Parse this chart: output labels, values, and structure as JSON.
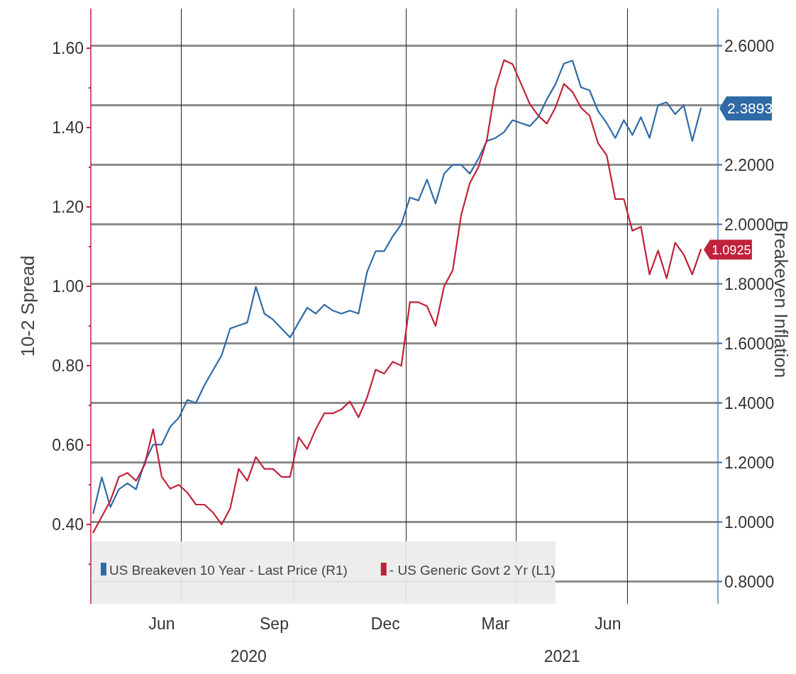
{
  "chart_data": {
    "type": "line",
    "ylabel": "10-2 Spread",
    "y2label": "Breakeven Inflation",
    "x": [
      "2020-04-20",
      "2020-04-27",
      "2020-05-04",
      "2020-05-11",
      "2020-05-18",
      "2020-05-25",
      "2020-06-01",
      "2020-06-08",
      "2020-06-15",
      "2020-06-22",
      "2020-06-29",
      "2020-07-06",
      "2020-07-13",
      "2020-07-20",
      "2020-07-27",
      "2020-08-03",
      "2020-08-10",
      "2020-08-17",
      "2020-08-24",
      "2020-08-31",
      "2020-09-07",
      "2020-09-14",
      "2020-09-21",
      "2020-09-28",
      "2020-10-05",
      "2020-10-12",
      "2020-10-19",
      "2020-10-26",
      "2020-11-02",
      "2020-11-09",
      "2020-11-16",
      "2020-11-23",
      "2020-11-30",
      "2020-12-07",
      "2020-12-14",
      "2020-12-21",
      "2020-12-28",
      "2021-01-04",
      "2021-01-11",
      "2021-01-18",
      "2021-01-25",
      "2021-02-01",
      "2021-02-08",
      "2021-02-15",
      "2021-02-22",
      "2021-03-01",
      "2021-03-08",
      "2021-03-15",
      "2021-03-22",
      "2021-03-29",
      "2021-04-05",
      "2021-04-12",
      "2021-04-19",
      "2021-04-26",
      "2021-05-03",
      "2021-05-10",
      "2021-05-17",
      "2021-05-24",
      "2021-05-31",
      "2021-06-07",
      "2021-06-14",
      "2021-06-21",
      "2021-06-28",
      "2021-07-05",
      "2021-07-12",
      "2021-07-19",
      "2021-07-26",
      "2021-08-02",
      "2021-08-09",
      "2021-08-16",
      "2021-08-23",
      "2021-08-30"
    ],
    "series": [
      {
        "name": "US Breakeven 10 Year - Last Price (R1)",
        "color": "#2f6aa6",
        "axis": "y2",
        "values": [
          1.03,
          1.15,
          1.05,
          1.11,
          1.13,
          1.11,
          1.2,
          1.26,
          1.26,
          1.32,
          1.35,
          1.41,
          1.4,
          1.46,
          1.51,
          1.56,
          1.65,
          1.66,
          1.67,
          1.79,
          1.7,
          1.68,
          1.65,
          1.62,
          1.67,
          1.72,
          1.7,
          1.73,
          1.71,
          1.7,
          1.71,
          1.7,
          1.84,
          1.91,
          1.91,
          1.96,
          2.0,
          2.09,
          2.08,
          2.15,
          2.07,
          2.17,
          2.2,
          2.2,
          2.17,
          2.22,
          2.28,
          2.29,
          2.31,
          2.35,
          2.34,
          2.33,
          2.36,
          2.42,
          2.47,
          2.54,
          2.55,
          2.46,
          2.45,
          2.38,
          2.34,
          2.29,
          2.35,
          2.3,
          2.36,
          2.29,
          2.4,
          2.41,
          2.37,
          2.4,
          2.28,
          2.3893
        ],
        "value_labels": [
          null,
          null,
          null,
          null,
          null,
          null,
          null,
          null,
          null,
          null,
          null,
          null,
          null,
          null,
          null,
          null,
          null,
          null,
          null,
          null,
          null,
          null,
          null,
          null,
          null,
          null,
          null,
          null,
          null,
          null,
          null,
          null,
          null,
          null,
          null,
          null,
          null,
          null,
          null,
          null,
          null,
          null,
          null,
          null,
          null,
          null,
          null,
          null,
          null,
          null,
          null,
          null,
          null,
          null,
          null,
          null,
          null,
          null,
          null,
          null,
          null,
          null,
          null,
          null,
          null,
          null,
          null,
          null,
          null,
          null,
          null,
          "2.3893"
        ]
      },
      {
        "name": "- US Generic Govt 2 Yr (L1)",
        "color": "#c0223b",
        "values": [
          0.38,
          0.42,
          0.46,
          0.52,
          0.53,
          0.51,
          0.55,
          0.64,
          0.52,
          0.49,
          0.5,
          0.48,
          0.45,
          0.45,
          0.43,
          0.4,
          0.44,
          0.54,
          0.51,
          0.57,
          0.54,
          0.54,
          0.52,
          0.52,
          0.62,
          0.59,
          0.64,
          0.68,
          0.68,
          0.69,
          0.71,
          0.67,
          0.72,
          0.79,
          0.78,
          0.81,
          0.8,
          0.96,
          0.96,
          0.95,
          0.9,
          1.0,
          1.04,
          1.18,
          1.26,
          1.3,
          1.37,
          1.5,
          1.57,
          1.56,
          1.51,
          1.46,
          1.43,
          1.41,
          1.45,
          1.51,
          1.49,
          1.45,
          1.43,
          1.36,
          1.33,
          1.22,
          1.22,
          1.14,
          1.15,
          1.03,
          1.09,
          1.02,
          1.11,
          1.08,
          1.03,
          1.0925
        ],
        "value_labels": [
          null,
          null,
          null,
          null,
          null,
          null,
          null,
          null,
          null,
          null,
          null,
          null,
          null,
          null,
          null,
          null,
          null,
          null,
          null,
          null,
          null,
          null,
          null,
          null,
          null,
          null,
          null,
          null,
          null,
          null,
          null,
          null,
          null,
          null,
          null,
          null,
          null,
          null,
          null,
          null,
          null,
          null,
          null,
          null,
          null,
          null,
          null,
          null,
          null,
          null,
          null,
          null,
          null,
          null,
          null,
          null,
          null,
          null,
          null,
          null,
          null,
          null,
          null,
          null,
          null,
          null,
          null,
          null,
          null,
          null,
          null,
          "1.0925"
        ]
      }
    ],
    "xlim": [
      "2020-04-18",
      "2021-09-13"
    ],
    "xticks": [
      {
        "value": "2020-06-15",
        "label": "Jun"
      },
      {
        "value": "2020-07-01",
        "label": null
      },
      {
        "value": "2020-09-15",
        "label": "Sep"
      },
      {
        "value": "2020-10-01",
        "label": null
      },
      {
        "value": "2020-12-15",
        "label": "Dec"
      },
      {
        "value": "2021-01-01",
        "label": null
      },
      {
        "value": "2021-03-15",
        "label": "Mar"
      },
      {
        "value": "2021-04-01",
        "label": null
      },
      {
        "value": "2021-06-15",
        "label": "Jun"
      },
      {
        "value": "2021-07-01",
        "label": null
      }
    ],
    "ylim": [
      0.2,
      1.7
    ],
    "yticks": [
      {
        "value": 0.3,
        "label": null
      },
      {
        "value": 0.4,
        "label": "0.40"
      },
      {
        "value": 0.5,
        "label": null
      },
      {
        "value": 0.6,
        "label": "0.60"
      },
      {
        "value": 0.7,
        "label": null
      },
      {
        "value": 0.8,
        "label": "0.80"
      },
      {
        "value": 0.9,
        "label": null
      },
      {
        "value": 1.0,
        "label": "1.00"
      },
      {
        "value": 1.1,
        "label": null
      },
      {
        "value": 1.2,
        "label": "1.20"
      },
      {
        "value": 1.3,
        "label": null
      },
      {
        "value": 1.4,
        "label": "1.40"
      },
      {
        "value": 1.5,
        "label": null
      },
      {
        "value": 1.6,
        "label": "1.60"
      }
    ],
    "y2lim": [
      0.725,
      2.725
    ],
    "y2ticks": [
      {
        "value": 0.8,
        "label": "0.8000"
      },
      {
        "value": 1.0,
        "label": "1.0000"
      },
      {
        "value": 1.2,
        "label": "1.2000"
      },
      {
        "value": 1.4,
        "label": "1.4000"
      },
      {
        "value": 1.6,
        "label": "1.6000"
      },
      {
        "value": 1.8,
        "label": "1.8000"
      },
      {
        "value": 2.0,
        "label": "2.0000"
      },
      {
        "value": 2.2,
        "label": "2.2000"
      },
      {
        "value": 2.4,
        "label": null
      },
      {
        "value": 2.6,
        "label": "2.6000"
      }
    ],
    "annotations": [
      "2020",
      "2021"
    ],
    "grid": true,
    "legend": "bottom left",
    "line_style": "solid"
  }
}
